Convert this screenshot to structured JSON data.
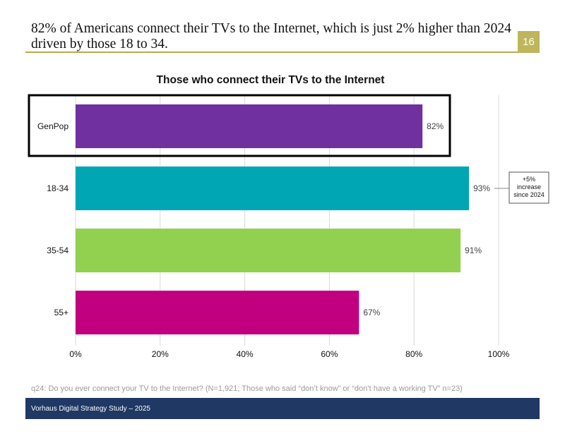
{
  "headline": "82% of Americans connect their TVs to the Internet, which is just 2% higher than 2024 driven by those 18 to 34.",
  "page_number": "16",
  "footnote": "q24: Do you ever connect your TV to the Internet? (N=1,921; Those who said “don’t know” or “don’t have a working TV” n=23)",
  "footer": "Vorhaus Digital Strategy Study – 2025",
  "chart_data": {
    "type": "bar",
    "orientation": "horizontal",
    "title": "Those who connect their TVs to the Internet",
    "categories": [
      "GenPop",
      "18-34",
      "35-54",
      "55+"
    ],
    "values": [
      82,
      93,
      91,
      67
    ],
    "value_labels": [
      "82%",
      "93%",
      "91%",
      "67%"
    ],
    "colors": [
      "#7030a0",
      "#00a6b4",
      "#92d050",
      "#c0007e"
    ],
    "xlim": [
      0,
      100
    ],
    "xticks": [
      0,
      20,
      40,
      60,
      80,
      100
    ],
    "xtick_labels": [
      "0%",
      "20%",
      "40%",
      "60%",
      "80%",
      "100%"
    ],
    "grid": true,
    "highlight_category": "GenPop",
    "annotation": {
      "category": "18-34",
      "lines": [
        "+5%",
        "increase",
        "since 2024"
      ]
    }
  }
}
